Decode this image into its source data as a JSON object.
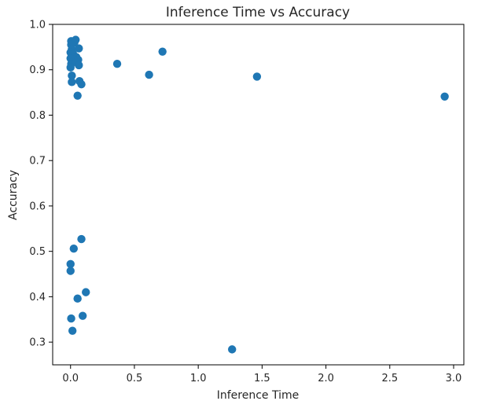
{
  "chart_data": {
    "type": "scatter",
    "title": "Inference Time vs Accuracy",
    "xlabel": "Inference Time",
    "ylabel": "Accuracy",
    "xlim": [
      -0.14,
      3.08
    ],
    "ylim": [
      0.25,
      1.0
    ],
    "xticks": [
      {
        "value": 0.0,
        "label": "0.0"
      },
      {
        "value": 0.5,
        "label": "0.5"
      },
      {
        "value": 1.0,
        "label": "1.0"
      },
      {
        "value": 1.5,
        "label": "1.5"
      },
      {
        "value": 2.0,
        "label": "2.0"
      },
      {
        "value": 2.5,
        "label": "2.5"
      },
      {
        "value": 3.0,
        "label": "3.0"
      }
    ],
    "yticks": [
      {
        "value": 0.3,
        "label": "0.3"
      },
      {
        "value": 0.4,
        "label": "0.4"
      },
      {
        "value": 0.5,
        "label": "0.5"
      },
      {
        "value": 0.6,
        "label": "0.6"
      },
      {
        "value": 0.7,
        "label": "0.7"
      },
      {
        "value": 0.8,
        "label": "0.8"
      },
      {
        "value": 0.9,
        "label": "0.9"
      },
      {
        "value": 1.0,
        "label": "1.0"
      }
    ],
    "grid": false,
    "marker_color": "#1f77b4",
    "series": [
      {
        "points": [
          {
            "x": 0.005,
            "y": 0.963
          },
          {
            "x": 0.03,
            "y": 0.96
          },
          {
            "x": 0.04,
            "y": 0.966
          },
          {
            "x": 0.005,
            "y": 0.955
          },
          {
            "x": 0.01,
            "y": 0.945
          },
          {
            "x": 0.065,
            "y": 0.947
          },
          {
            "x": 0.0,
            "y": 0.938
          },
          {
            "x": 0.02,
            "y": 0.935
          },
          {
            "x": 0.045,
            "y": 0.928
          },
          {
            "x": 0.0,
            "y": 0.925
          },
          {
            "x": 0.025,
            "y": 0.92
          },
          {
            "x": 0.06,
            "y": 0.922
          },
          {
            "x": 0.005,
            "y": 0.913
          },
          {
            "x": 0.045,
            "y": 0.917
          },
          {
            "x": 0.065,
            "y": 0.91
          },
          {
            "x": 0.0,
            "y": 0.905
          },
          {
            "x": 0.01,
            "y": 0.887
          },
          {
            "x": 0.01,
            "y": 0.873
          },
          {
            "x": 0.07,
            "y": 0.875
          },
          {
            "x": 0.085,
            "y": 0.868
          },
          {
            "x": 0.055,
            "y": 0.843
          },
          {
            "x": 0.365,
            "y": 0.913
          },
          {
            "x": 0.72,
            "y": 0.94
          },
          {
            "x": 0.615,
            "y": 0.889
          },
          {
            "x": 1.46,
            "y": 0.885
          },
          {
            "x": 2.93,
            "y": 0.841
          },
          {
            "x": 0.085,
            "y": 0.527
          },
          {
            "x": 0.025,
            "y": 0.506
          },
          {
            "x": 0.0,
            "y": 0.472
          },
          {
            "x": 0.0,
            "y": 0.457
          },
          {
            "x": 0.12,
            "y": 0.41
          },
          {
            "x": 0.055,
            "y": 0.396
          },
          {
            "x": 0.095,
            "y": 0.358
          },
          {
            "x": 0.005,
            "y": 0.352
          },
          {
            "x": 0.015,
            "y": 0.325
          },
          {
            "x": 1.265,
            "y": 0.284
          }
        ]
      }
    ]
  }
}
